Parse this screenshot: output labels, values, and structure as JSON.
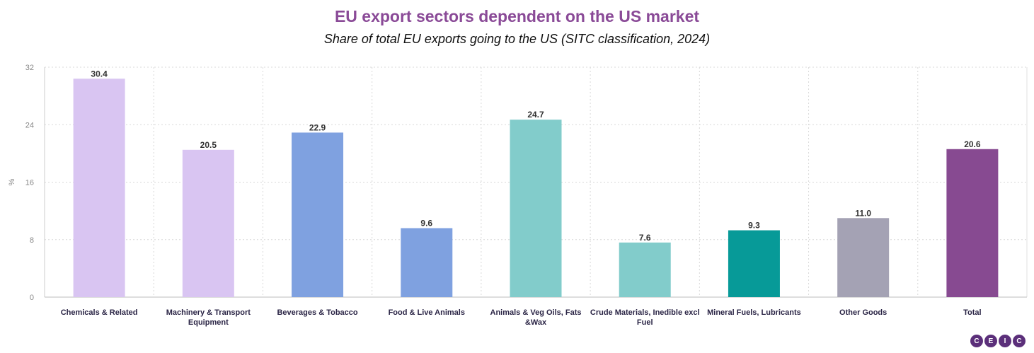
{
  "header": {
    "title": "EU export sectors dependent on the US market",
    "subtitle": "Share of total EU exports going to the US (SITC classification, 2024)"
  },
  "logo": {
    "letters": [
      "C",
      "E",
      "I",
      "C"
    ]
  },
  "chart_data": {
    "type": "bar",
    "title": "EU export sectors dependent on the US market",
    "subtitle": "Share of total EU exports going to the US (SITC classification, 2024)",
    "ylabel": "%",
    "xlabel": "",
    "ylim": [
      0,
      32
    ],
    "yticks": [
      0,
      8,
      16,
      24,
      32
    ],
    "grid": true,
    "categories": [
      [
        "Chemicals & Related"
      ],
      [
        "Machinery & Transport",
        "Equipment"
      ],
      [
        "Beverages & Tobacco"
      ],
      [
        "Food & Live Animals"
      ],
      [
        "Animals & Veg Oils, Fats",
        "&Wax"
      ],
      [
        "Crude Materials, Inedible excl",
        "Fuel"
      ],
      [
        "Mineral Fuels, Lubricants"
      ],
      [
        "Other Goods"
      ],
      [
        "Total"
      ]
    ],
    "values": [
      30.4,
      20.5,
      22.9,
      9.6,
      24.7,
      7.6,
      9.3,
      11.0,
      20.6
    ],
    "value_labels": [
      "30.4",
      "20.5",
      "22.9",
      "9.6",
      "24.7",
      "7.6",
      "9.3",
      "11.0",
      "20.6"
    ],
    "colors": [
      "#d9c5f2",
      "#d9c5f2",
      "#7fa1e0",
      "#7fa1e0",
      "#82cccb",
      "#82cccb",
      "#079a98",
      "#a4a2b4",
      "#874a91"
    ]
  }
}
